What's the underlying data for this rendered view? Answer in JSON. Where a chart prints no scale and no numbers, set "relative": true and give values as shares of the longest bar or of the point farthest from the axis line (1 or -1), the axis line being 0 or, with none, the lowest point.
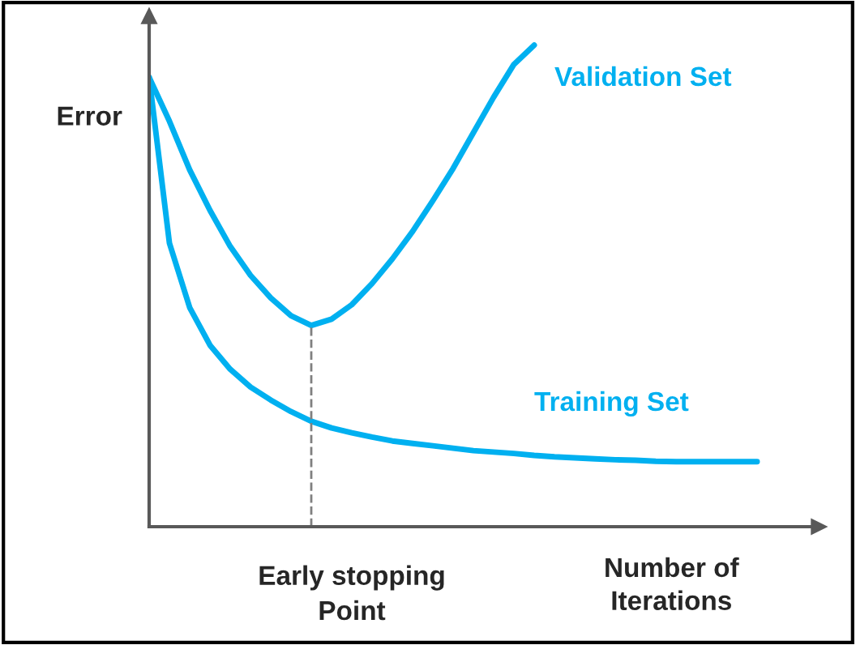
{
  "chart_data": {
    "type": "line",
    "relative": true,
    "ylabel": "Error",
    "xlabel": "Number of\nIterations",
    "categories": [
      null,
      null,
      null,
      null,
      null,
      null,
      null,
      null,
      null,
      null,
      null,
      null,
      null,
      null,
      null,
      null,
      null,
      null,
      null,
      null,
      null,
      null,
      null,
      null,
      null,
      null,
      null,
      null,
      null,
      null,
      null
    ],
    "series": [
      {
        "name": "Validation Set",
        "color": "#00b0f0",
        "values": [
          0.933,
          0.842,
          0.741,
          0.657,
          0.582,
          0.522,
          0.475,
          0.438,
          0.418,
          0.431,
          0.461,
          0.505,
          0.556,
          0.613,
          0.677,
          0.744,
          0.818,
          0.892,
          0.96,
          1.0,
          null,
          null,
          null,
          null,
          null,
          null,
          null,
          null,
          null,
          null,
          null
        ]
      },
      {
        "name": "Training Set",
        "color": "#00b0f0",
        "values": [
          0.933,
          0.589,
          0.455,
          0.377,
          0.327,
          0.29,
          0.263,
          0.239,
          0.219,
          0.205,
          0.195,
          0.186,
          0.178,
          0.173,
          0.168,
          0.163,
          0.158,
          0.155,
          0.152,
          0.148,
          0.145,
          0.143,
          0.141,
          0.139,
          0.138,
          0.136,
          0.135,
          0.135,
          0.135,
          0.135,
          0.135
        ]
      }
    ],
    "annotations": [
      "Early stopping\nPoint"
    ],
    "legend": false,
    "marker": "none",
    "line_style": "solid"
  }
}
